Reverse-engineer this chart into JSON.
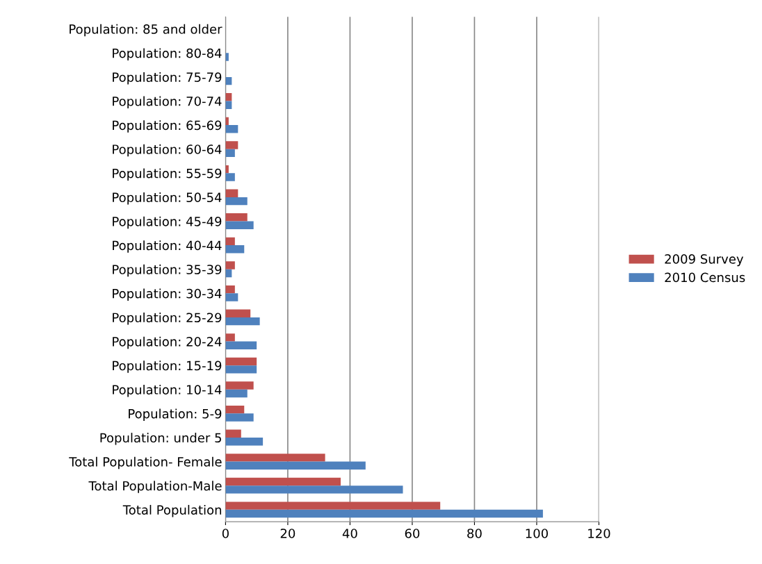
{
  "chart_data": {
    "type": "bar",
    "orientation": "horizontal",
    "categories": [
      "Population: 85 and older",
      "Population: 80-84",
      "Population: 75-79",
      "Population: 70-74",
      "Population: 65-69",
      "Population: 60-64",
      "Population: 55-59",
      "Population: 50-54",
      "Population: 45-49",
      "Population: 40-44",
      "Population: 35-39",
      "Population: 30-34",
      "Population: 25-29",
      "Population: 20-24",
      "Population: 15-19",
      "Population: 10-14",
      "Population: 5-9",
      "Population: under 5",
      "Total Population- Female",
      "Total Population-Male",
      "Total Population"
    ],
    "series": [
      {
        "name": "2009 Survey",
        "color": "#c0504d",
        "values": [
          0,
          0,
          0,
          2,
          1,
          4,
          1,
          4,
          7,
          3,
          3,
          3,
          8,
          3,
          10,
          9,
          6,
          5,
          32,
          37,
          69
        ]
      },
      {
        "name": "2010 Census",
        "color": "#4f81bd",
        "values": [
          0,
          1,
          2,
          2,
          4,
          3,
          3,
          7,
          9,
          6,
          2,
          4,
          11,
          10,
          10,
          7,
          9,
          12,
          45,
          57,
          102
        ]
      }
    ],
    "xlim": [
      0,
      120
    ],
    "xticks": [
      0,
      20,
      40,
      60,
      80,
      100,
      120
    ],
    "grid": "x",
    "legend": "right"
  }
}
